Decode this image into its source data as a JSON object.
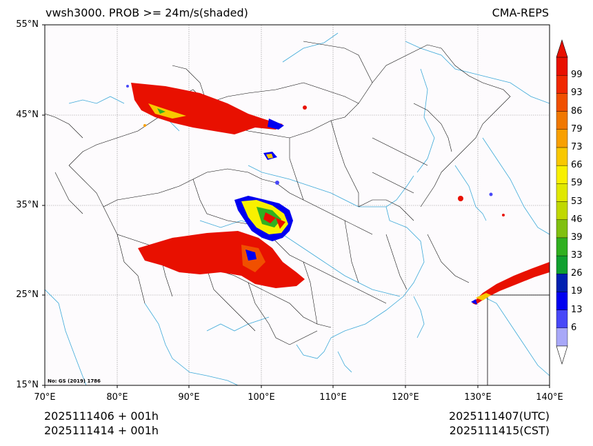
{
  "title": {
    "left": "vwsh3000. PROB >= 24m/s(shaded)",
    "right": "CMA-REPS"
  },
  "axes": {
    "lat_labels": [
      "55°N",
      "45°N",
      "35°N",
      "25°N",
      "15°N"
    ],
    "lon_labels": [
      "70°E",
      "80°E",
      "90°E",
      "100°E",
      "110°E",
      "120°E",
      "130°E",
      "140°E"
    ]
  },
  "footer": {
    "init_utc": "2025111406  +  001h",
    "init_cst": "2025111414  +  001h",
    "valid_utc": "2025111407(UTC)",
    "valid_cst": "2025111415(CST)"
  },
  "note": "No: GS (2019) 1786",
  "colorbar": {
    "labels": [
      "99",
      "93",
      "86",
      "79",
      "73",
      "66",
      "59",
      "53",
      "46",
      "39",
      "33",
      "26",
      "19",
      "13",
      "6"
    ],
    "colors": [
      "#a8a8f8",
      "#4848f8",
      "#0000f0",
      "#0020b0",
      "#10a030",
      "#30b020",
      "#80c010",
      "#c0d800",
      "#e0e800",
      "#f8f000",
      "#f8c800",
      "#f8a000",
      "#f07800",
      "#f05000",
      "#f02800",
      "#e81000"
    ]
  },
  "colors": {
    "coast": "#3aa8d8",
    "border": "#000000",
    "grid": "#888888",
    "map_bg": "#fdfbfd"
  }
}
